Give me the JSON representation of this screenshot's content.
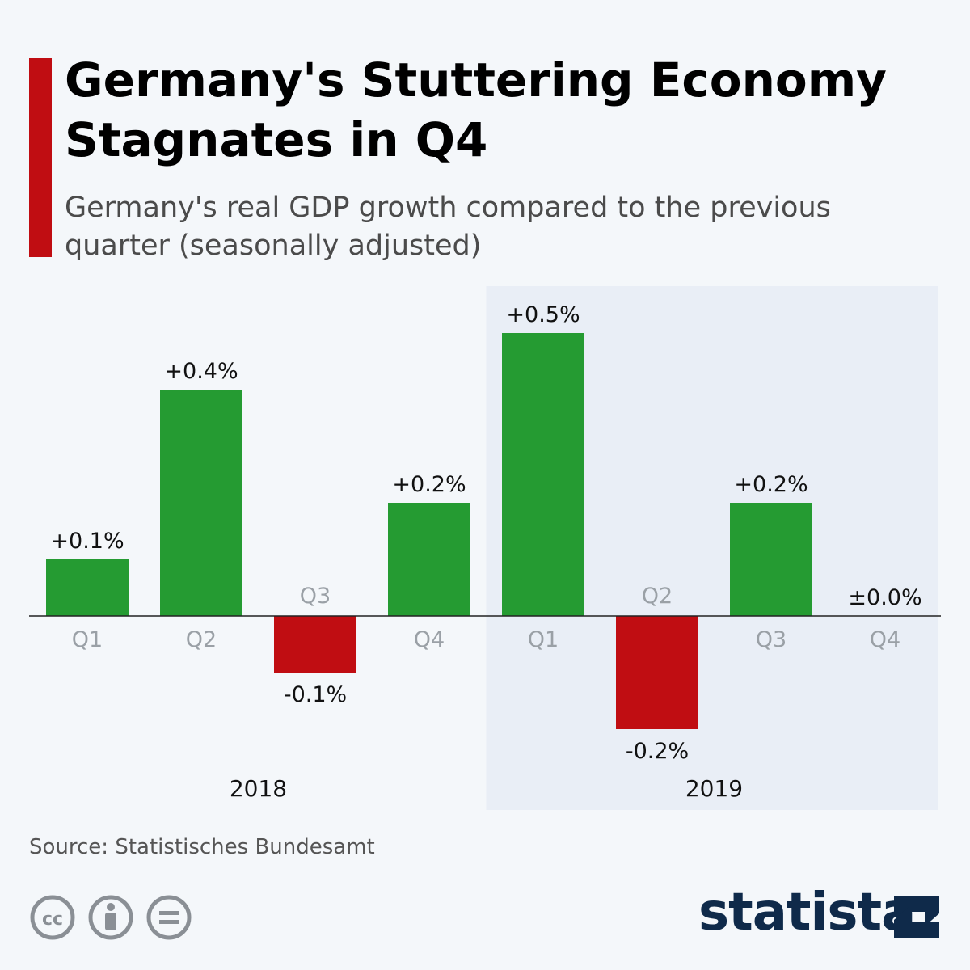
{
  "header": {
    "title": "Germany's Stuttering Economy Stagnates in Q4",
    "subtitle": "Germany's real GDP growth compared to the previous quarter (seasonally adjusted)"
  },
  "footer": {
    "source": "Source: Statistisches Bundesamt",
    "brand": "statista"
  },
  "colors": {
    "positive": "#259b32",
    "negative": "#c00d12",
    "accent": "#c00d12",
    "highlight_band": "#e9eef6",
    "quarter_label": "#9aa0a6",
    "brand": "#0f2a4a"
  },
  "chart_data": {
    "type": "bar",
    "categories": [
      "Q1",
      "Q2",
      "Q3",
      "Q4",
      "Q1",
      "Q2",
      "Q3",
      "Q4"
    ],
    "groups": [
      {
        "name": "2018",
        "indices": [
          0,
          1,
          2,
          3
        ]
      },
      {
        "name": "2019",
        "indices": [
          4,
          5,
          6,
          7
        ],
        "highlighted": true
      }
    ],
    "values": [
      0.1,
      0.4,
      -0.1,
      0.2,
      0.5,
      -0.2,
      0.2,
      0.0
    ],
    "data_labels": [
      "+0.1%",
      "+0.4%",
      "-0.1%",
      "+0.2%",
      "+0.5%",
      "-0.2%",
      "+0.2%",
      "±0.0%"
    ],
    "ylim": [
      -0.2,
      0.5
    ],
    "grid": false,
    "legend": "none"
  }
}
